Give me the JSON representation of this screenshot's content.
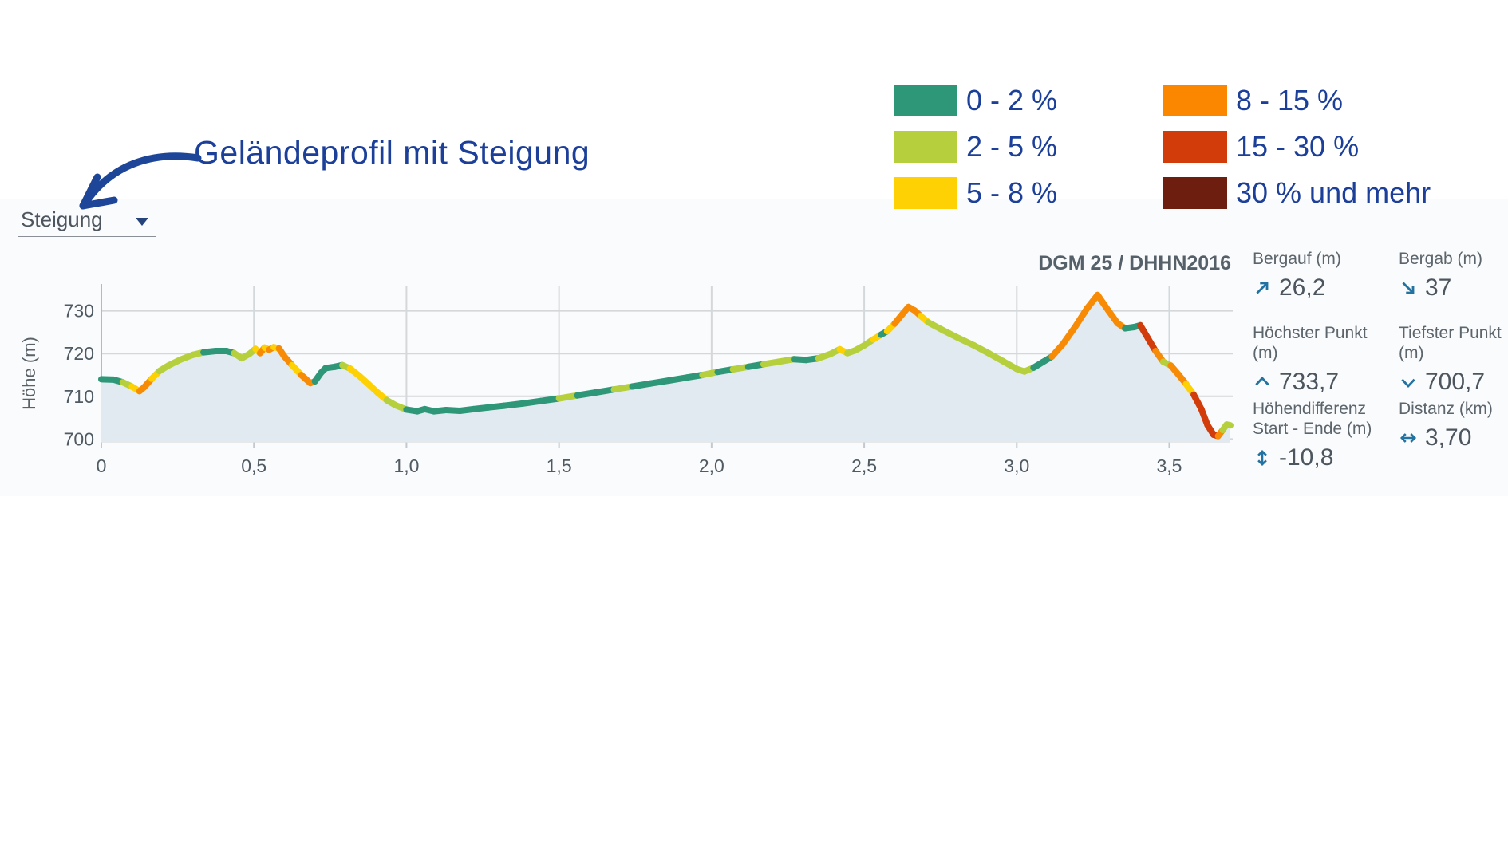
{
  "annotation": {
    "title": "Geländeprofil mit Steigung"
  },
  "toolbar": {
    "dropdown_label": "Steigung"
  },
  "legend": {
    "items": [
      {
        "label": "0 - 2 %",
        "color": "#2e9778"
      },
      {
        "label": "2 - 5 %",
        "color": "#b5d03c"
      },
      {
        "label": "5 - 8 %",
        "color": "#fdd104"
      },
      {
        "label": "8 - 15 %",
        "color": "#fb8600"
      },
      {
        "label": "15 - 30 %",
        "color": "#d23c0b"
      },
      {
        "label": "30 % und mehr",
        "color": "#6e1e0e"
      }
    ]
  },
  "chart": {
    "source_label": "DGM 25 / DHHN2016",
    "y_axis_title": "Höhe (m)"
  },
  "stats": {
    "cells": [
      {
        "label": "Bergauf (m)",
        "value": "26,2",
        "icon": "arrow-up-right"
      },
      {
        "label": "Bergab (m)",
        "value": "37",
        "icon": "arrow-down-right"
      },
      {
        "label": "Höchster Punkt (m)",
        "value": "733,7",
        "icon": "chevron-up"
      },
      {
        "label": "Tiefster Punkt (m)",
        "value": "700,7",
        "icon": "chevron-down"
      },
      {
        "label": "Höhendifferenz Start - Ende (m)",
        "value": "-10,8",
        "icon": "arrow-up-down"
      },
      {
        "label": "Distanz (km)",
        "value": "3,70",
        "icon": "arrow-left-right"
      }
    ],
    "icon_color": "#2373a2"
  },
  "chart_data": {
    "type": "area",
    "subtype": "elevation-profile-colored-by-slope",
    "title": "",
    "xlabel": "Distanz (km)",
    "ylabel": "Höhe (m)",
    "xlim": [
      0,
      3.7
    ],
    "ylim": [
      700,
      735
    ],
    "grid": true,
    "x_ticks": [
      0,
      0.5,
      1.0,
      1.5,
      2.0,
      2.5,
      3.0,
      3.5
    ],
    "x_tick_labels": [
      "0",
      "0,5",
      "1,0",
      "1,5",
      "2,0",
      "2,5",
      "3,0",
      "3,5"
    ],
    "y_ticks": [
      700,
      710,
      720,
      730
    ],
    "y_tick_labels": [
      "700",
      "710",
      "720",
      "730"
    ],
    "source": "DGM 25 / DHHN2016",
    "area_fill_color": "#e1eaf1",
    "slope_classes": {
      "t": {
        "range": "0 - 2 %",
        "color": "#2e9778"
      },
      "g": {
        "range": "2 - 5 %",
        "color": "#b5d03c"
      },
      "y": {
        "range": "5 - 8 %",
        "color": "#fdd104"
      },
      "o": {
        "range": "8 - 15 %",
        "color": "#f78b05"
      },
      "r": {
        "range": "15 - 30 %",
        "color": "#d23c0b"
      },
      "d": {
        "range": "30 % und mehr",
        "color": "#6e1e0e"
      }
    },
    "summary": {
      "ascent_m": 26.2,
      "descent_m": 37,
      "max_elevation_m": 733.7,
      "min_elevation_m": 700.7,
      "elevation_diff_start_end_m": -10.8,
      "distance_km": 3.7
    },
    "points": [
      [
        0.0,
        714.0,
        "t"
      ],
      [
        0.04,
        713.9,
        "t"
      ],
      [
        0.07,
        713.3,
        "g"
      ],
      [
        0.1,
        712.3,
        "y"
      ],
      [
        0.125,
        711.2,
        "o"
      ],
      [
        0.14,
        712.1,
        "o"
      ],
      [
        0.165,
        714.1,
        "y"
      ],
      [
        0.19,
        715.9,
        "g"
      ],
      [
        0.22,
        717.2,
        "g"
      ],
      [
        0.26,
        718.6,
        "g"
      ],
      [
        0.3,
        719.7,
        "g"
      ],
      [
        0.335,
        720.3,
        "t"
      ],
      [
        0.375,
        720.6,
        "t"
      ],
      [
        0.41,
        720.6,
        "t"
      ],
      [
        0.435,
        720.1,
        "g"
      ],
      [
        0.46,
        718.9,
        "g"
      ],
      [
        0.485,
        719.9,
        "g"
      ],
      [
        0.505,
        721.1,
        "y"
      ],
      [
        0.52,
        720.1,
        "o"
      ],
      [
        0.535,
        721.4,
        "y"
      ],
      [
        0.55,
        720.9,
        "o"
      ],
      [
        0.565,
        721.5,
        "y"
      ],
      [
        0.582,
        721.2,
        "o"
      ],
      [
        0.6,
        719.3,
        "o"
      ],
      [
        0.625,
        717.3,
        "y"
      ],
      [
        0.655,
        715.0,
        "o"
      ],
      [
        0.685,
        713.1,
        "o"
      ],
      [
        0.7,
        713.5,
        "t"
      ],
      [
        0.72,
        715.5,
        "t"
      ],
      [
        0.735,
        716.6,
        "t"
      ],
      [
        0.765,
        716.9,
        "t"
      ],
      [
        0.79,
        717.3,
        "g"
      ],
      [
        0.815,
        716.5,
        "y"
      ],
      [
        0.845,
        714.8,
        "y"
      ],
      [
        0.875,
        712.9,
        "y"
      ],
      [
        0.905,
        710.9,
        "y"
      ],
      [
        0.935,
        709.1,
        "g"
      ],
      [
        0.965,
        707.9,
        "g"
      ],
      [
        1.0,
        706.9,
        "t"
      ],
      [
        1.035,
        706.5,
        "t"
      ],
      [
        1.06,
        707.0,
        "t"
      ],
      [
        1.09,
        706.5,
        "t"
      ],
      [
        1.13,
        706.8,
        "t"
      ],
      [
        1.175,
        706.6,
        "t"
      ],
      [
        1.22,
        707.0,
        "t"
      ],
      [
        1.27,
        707.4,
        "t"
      ],
      [
        1.32,
        707.8,
        "t"
      ],
      [
        1.38,
        708.3,
        "t"
      ],
      [
        1.44,
        708.9,
        "t"
      ],
      [
        1.5,
        709.5,
        "g"
      ],
      [
        1.56,
        710.2,
        "t"
      ],
      [
        1.62,
        710.9,
        "t"
      ],
      [
        1.68,
        711.6,
        "g"
      ],
      [
        1.74,
        712.3,
        "t"
      ],
      [
        1.8,
        713.0,
        "t"
      ],
      [
        1.86,
        713.7,
        "t"
      ],
      [
        1.92,
        714.4,
        "t"
      ],
      [
        1.97,
        715.0,
        "g"
      ],
      [
        2.02,
        715.7,
        "t"
      ],
      [
        2.07,
        716.3,
        "g"
      ],
      [
        2.12,
        716.9,
        "t"
      ],
      [
        2.17,
        717.5,
        "g"
      ],
      [
        2.22,
        718.1,
        "g"
      ],
      [
        2.27,
        718.7,
        "t"
      ],
      [
        2.31,
        718.5,
        "t"
      ],
      [
        2.35,
        718.9,
        "g"
      ],
      [
        2.39,
        719.9,
        "g"
      ],
      [
        2.42,
        721.0,
        "y"
      ],
      [
        2.445,
        720.1,
        "g"
      ],
      [
        2.47,
        720.7,
        "g"
      ],
      [
        2.5,
        721.9,
        "g"
      ],
      [
        2.53,
        723.3,
        "y"
      ],
      [
        2.555,
        724.4,
        "t"
      ],
      [
        2.575,
        725.2,
        "y"
      ],
      [
        2.6,
        727.0,
        "o"
      ],
      [
        2.625,
        729.2,
        "o"
      ],
      [
        2.645,
        730.9,
        "o"
      ],
      [
        2.665,
        730.1,
        "o"
      ],
      [
        2.685,
        728.8,
        "y"
      ],
      [
        2.71,
        727.3,
        "g"
      ],
      [
        2.76,
        725.4,
        "g"
      ],
      [
        2.81,
        723.6,
        "g"
      ],
      [
        2.86,
        721.9,
        "g"
      ],
      [
        2.91,
        720.0,
        "g"
      ],
      [
        2.955,
        718.2,
        "g"
      ],
      [
        3.0,
        716.4,
        "g"
      ],
      [
        3.025,
        715.8,
        "g"
      ],
      [
        3.055,
        716.7,
        "t"
      ],
      [
        3.085,
        718.0,
        "t"
      ],
      [
        3.115,
        719.3,
        "o"
      ],
      [
        3.15,
        722.1,
        "o"
      ],
      [
        3.19,
        726.1,
        "o"
      ],
      [
        3.23,
        730.5,
        "o"
      ],
      [
        3.265,
        733.7,
        "o"
      ],
      [
        3.3,
        730.1,
        "o"
      ],
      [
        3.33,
        727.1,
        "o"
      ],
      [
        3.355,
        725.9,
        "t"
      ],
      [
        3.385,
        726.2,
        "t"
      ],
      [
        3.405,
        726.6,
        "r"
      ],
      [
        3.43,
        723.6,
        "r"
      ],
      [
        3.455,
        720.6,
        "o"
      ],
      [
        3.48,
        718.1,
        "g"
      ],
      [
        3.505,
        717.2,
        "o"
      ],
      [
        3.53,
        715.1,
        "o"
      ],
      [
        3.555,
        712.9,
        "y"
      ],
      [
        3.58,
        710.4,
        "r"
      ],
      [
        3.605,
        707.0,
        "r"
      ],
      [
        3.625,
        703.3,
        "r"
      ],
      [
        3.645,
        701.0,
        "r"
      ],
      [
        3.66,
        700.7,
        "o"
      ],
      [
        3.675,
        702.1,
        "g"
      ],
      [
        3.688,
        703.4,
        "g"
      ],
      [
        3.7,
        703.2,
        "g"
      ]
    ]
  }
}
